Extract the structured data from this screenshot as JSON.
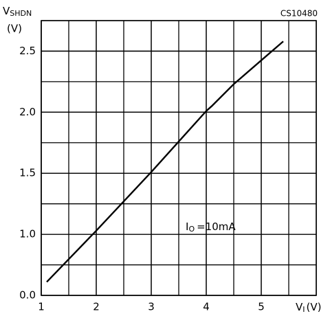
{
  "chart_data": {
    "type": "line",
    "code": "CS10480",
    "ylabel": {
      "main": "V",
      "sub": "SHDN",
      "unit": "(V)"
    },
    "xlabel": {
      "main": "V",
      "sub": "I",
      "unit": "(V)"
    },
    "annotation": {
      "main": "I",
      "sub": "O",
      "rest": "=10mA"
    },
    "x": [
      1.1,
      2.0,
      3.0,
      4.0,
      4.1,
      4.5,
      5.4
    ],
    "series": [
      {
        "color": "#000000",
        "values": [
          0.22,
          1.03,
          1.51,
          2.01,
          2.05,
          2.23,
          2.58
        ]
      }
    ],
    "xlim": [
      1,
      6
    ],
    "xticks": [
      1,
      2,
      3,
      4,
      5
    ],
    "ylim": [
      0,
      2.75
    ],
    "yticks": [
      {
        "value": 0,
        "label": "0.0"
      },
      {
        "value": 1,
        "label": "1.0"
      },
      1.5,
      {
        "value": 2,
        "label": "2.0"
      },
      2.5
    ],
    "grid": true
  }
}
